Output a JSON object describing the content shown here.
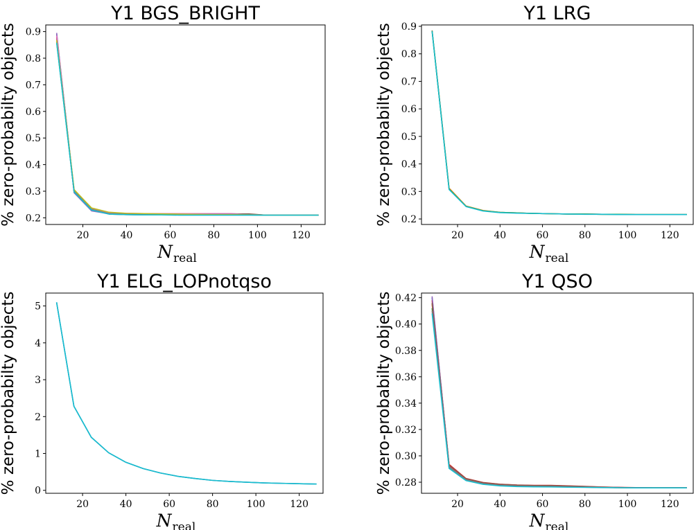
{
  "chart_data": [
    {
      "type": "line",
      "title": "Y1 BGS_BRIGHT",
      "xlabel": "N",
      "xlabel_sub": "real",
      "ylabel": "% zero-probabilty objects",
      "xlim": [
        3,
        131
      ],
      "ylim": [
        0.175,
        0.925
      ],
      "xticks": [
        20,
        40,
        60,
        80,
        100,
        120
      ],
      "yticks": [
        0.2,
        0.3,
        0.4,
        0.5,
        0.6,
        0.7,
        0.8,
        0.9
      ],
      "ytick_decimals": 1,
      "series": [
        {
          "color": "#1f77b4",
          "x": [
            8,
            16,
            24,
            32,
            40,
            48,
            56,
            64,
            72,
            80,
            88,
            96,
            104,
            112,
            120,
            128
          ],
          "values": [
            0.89,
            0.3,
            0.228,
            0.214,
            0.212,
            0.211,
            0.211,
            0.211,
            0.211,
            0.211,
            0.211,
            0.211,
            0.21,
            0.21,
            0.21,
            0.21
          ]
        },
        {
          "color": "#ff7f0e",
          "x": [
            8,
            16,
            24,
            32,
            40,
            48,
            56,
            64,
            72,
            80,
            88,
            96,
            104,
            112,
            120,
            128
          ],
          "values": [
            0.87,
            0.305,
            0.235,
            0.22,
            0.216,
            0.215,
            0.214,
            0.214,
            0.213,
            0.213,
            0.212,
            0.212,
            0.21,
            0.21,
            0.21,
            0.21
          ]
        },
        {
          "color": "#2ca02c",
          "x": [
            8,
            16,
            24,
            32,
            40,
            48,
            56,
            64,
            72,
            80,
            88,
            96,
            104,
            112,
            120,
            128
          ],
          "values": [
            0.86,
            0.298,
            0.23,
            0.216,
            0.214,
            0.213,
            0.212,
            0.212,
            0.212,
            0.211,
            0.211,
            0.211,
            0.21,
            0.21,
            0.21,
            0.21
          ]
        },
        {
          "color": "#d62728",
          "x": [
            8,
            16,
            24,
            32,
            40,
            48,
            56,
            64,
            72,
            80,
            88,
            96,
            104,
            112,
            120,
            128
          ],
          "values": [
            0.88,
            0.296,
            0.229,
            0.217,
            0.215,
            0.215,
            0.214,
            0.214,
            0.214,
            0.214,
            0.214,
            0.213,
            0.21,
            0.21,
            0.21,
            0.21
          ]
        },
        {
          "color": "#9467bd",
          "x": [
            8,
            16,
            24,
            32,
            40,
            48,
            56,
            64,
            72,
            80,
            88,
            96,
            104,
            112,
            120,
            128
          ],
          "values": [
            0.895,
            0.294,
            0.226,
            0.215,
            0.213,
            0.212,
            0.212,
            0.212,
            0.212,
            0.212,
            0.212,
            0.212,
            0.21,
            0.21,
            0.21,
            0.21
          ]
        },
        {
          "color": "#8c564b",
          "x": [
            8,
            16,
            24,
            32,
            40,
            48,
            56,
            64,
            72,
            80,
            88,
            96,
            104,
            112,
            120,
            128
          ],
          "values": [
            0.875,
            0.297,
            0.231,
            0.218,
            0.216,
            0.215,
            0.215,
            0.215,
            0.215,
            0.215,
            0.215,
            0.215,
            0.21,
            0.21,
            0.21,
            0.21
          ]
        },
        {
          "color": "#e377c2",
          "x": [
            8,
            16,
            24,
            32,
            40,
            48,
            56,
            64,
            72,
            80,
            88,
            96,
            104,
            112,
            120,
            128
          ],
          "values": [
            0.885,
            0.299,
            0.233,
            0.219,
            0.217,
            0.216,
            0.216,
            0.216,
            0.216,
            0.216,
            0.216,
            0.212,
            0.21,
            0.21,
            0.21,
            0.21
          ]
        },
        {
          "color": "#7f7f7f",
          "x": [
            8,
            16,
            24,
            32,
            40,
            48,
            56,
            64,
            72,
            80,
            88,
            96,
            104,
            112,
            120,
            128
          ],
          "values": [
            0.865,
            0.301,
            0.232,
            0.216,
            0.214,
            0.213,
            0.213,
            0.213,
            0.213,
            0.213,
            0.213,
            0.213,
            0.21,
            0.21,
            0.21,
            0.21
          ]
        },
        {
          "color": "#bcbd22",
          "x": [
            8,
            16,
            24,
            32,
            40,
            48,
            56,
            64,
            72,
            80,
            88,
            96,
            104,
            112,
            120,
            128
          ],
          "values": [
            0.868,
            0.306,
            0.237,
            0.221,
            0.217,
            0.216,
            0.215,
            0.214,
            0.213,
            0.212,
            0.212,
            0.211,
            0.21,
            0.21,
            0.21,
            0.21
          ]
        },
        {
          "color": "#17becf",
          "x": [
            8,
            16,
            24,
            32,
            40,
            48,
            56,
            64,
            72,
            80,
            88,
            96,
            104,
            112,
            120,
            128
          ],
          "values": [
            0.858,
            0.297,
            0.229,
            0.214,
            0.212,
            0.211,
            0.211,
            0.21,
            0.21,
            0.21,
            0.21,
            0.21,
            0.21,
            0.21,
            0.21,
            0.21
          ]
        }
      ]
    },
    {
      "type": "line",
      "title": "Y1 LRG",
      "xlabel": "N",
      "xlabel_sub": "real",
      "ylabel": "% zero-probabilty objects",
      "xlim": [
        3,
        131
      ],
      "ylim": [
        0.18,
        0.905
      ],
      "xticks": [
        20,
        40,
        60,
        80,
        100,
        120
      ],
      "yticks": [
        0.2,
        0.3,
        0.4,
        0.5,
        0.6,
        0.7,
        0.8,
        0.9
      ],
      "ytick_decimals": 1,
      "series": [
        {
          "color": "#1f77b4",
          "x": [
            8,
            16,
            24,
            32,
            40,
            48,
            56,
            64,
            72,
            80,
            88,
            96,
            104,
            112,
            120,
            128
          ],
          "values": [
            0.885,
            0.31,
            0.246,
            0.23,
            0.224,
            0.222,
            0.22,
            0.219,
            0.218,
            0.218,
            0.217,
            0.217,
            0.216,
            0.216,
            0.216,
            0.216
          ]
        },
        {
          "color": "#ff7f0e",
          "x": [
            8,
            16,
            24,
            32,
            40,
            48,
            56,
            64,
            72,
            80,
            88,
            96,
            104,
            112,
            120,
            128
          ],
          "values": [
            0.884,
            0.312,
            0.247,
            0.231,
            0.224,
            0.222,
            0.22,
            0.219,
            0.218,
            0.218,
            0.217,
            0.217,
            0.216,
            0.216,
            0.216,
            0.216
          ]
        },
        {
          "color": "#2ca02c",
          "x": [
            8,
            16,
            24,
            32,
            40,
            48,
            56,
            64,
            72,
            80,
            88,
            96,
            104,
            112,
            120,
            128
          ],
          "values": [
            0.883,
            0.309,
            0.246,
            0.23,
            0.224,
            0.222,
            0.22,
            0.219,
            0.218,
            0.218,
            0.217,
            0.217,
            0.216,
            0.216,
            0.216,
            0.216
          ]
        },
        {
          "color": "#17becf",
          "x": [
            8,
            16,
            24,
            32,
            40,
            48,
            56,
            64,
            72,
            80,
            88,
            96,
            104,
            112,
            120,
            128
          ],
          "values": [
            0.882,
            0.307,
            0.245,
            0.229,
            0.223,
            0.221,
            0.22,
            0.219,
            0.218,
            0.217,
            0.217,
            0.216,
            0.216,
            0.216,
            0.216,
            0.216
          ]
        }
      ]
    },
    {
      "type": "line",
      "title": "Y1 ELG_LOPnotqso",
      "xlabel": "N",
      "xlabel_sub": "real",
      "ylabel": "% zero-probabilty objects",
      "xlim": [
        3,
        131
      ],
      "ylim": [
        -0.08,
        5.35
      ],
      "xticks": [
        20,
        40,
        60,
        80,
        100,
        120
      ],
      "yticks": [
        0,
        1,
        2,
        3,
        4,
        5
      ],
      "ytick_decimals": 0,
      "series": [
        {
          "color": "#1f77b4",
          "x": [
            8,
            16,
            24,
            32,
            40,
            48,
            56,
            64,
            72,
            80,
            88,
            96,
            104,
            112,
            120,
            128
          ],
          "values": [
            5.1,
            2.28,
            1.44,
            1.02,
            0.76,
            0.59,
            0.47,
            0.38,
            0.32,
            0.27,
            0.24,
            0.22,
            0.2,
            0.19,
            0.18,
            0.17
          ]
        },
        {
          "color": "#17becf",
          "x": [
            8,
            16,
            24,
            32,
            40,
            48,
            56,
            64,
            72,
            80,
            88,
            96,
            104,
            112,
            120,
            128
          ],
          "values": [
            5.1,
            2.28,
            1.44,
            1.02,
            0.76,
            0.59,
            0.47,
            0.38,
            0.32,
            0.27,
            0.24,
            0.22,
            0.2,
            0.19,
            0.18,
            0.17
          ]
        }
      ]
    },
    {
      "type": "line",
      "title": "Y1 QSO",
      "xlabel": "N",
      "xlabel_sub": "real",
      "ylabel": "% zero-probabilty objects",
      "xlim": [
        3,
        131
      ],
      "ylim": [
        0.2716,
        0.4235
      ],
      "xticks": [
        20,
        40,
        60,
        80,
        100,
        120
      ],
      "yticks": [
        0.28,
        0.3,
        0.32,
        0.34,
        0.36,
        0.38,
        0.4,
        0.42
      ],
      "ytick_decimals": 2,
      "series": [
        {
          "color": "#1f77b4",
          "x": [
            8,
            16,
            24,
            32,
            40,
            48,
            56,
            64,
            72,
            80,
            88,
            96,
            104,
            112,
            120,
            128
          ],
          "values": [
            0.42,
            0.293,
            0.2825,
            0.2795,
            0.2782,
            0.2775,
            0.2773,
            0.2772,
            0.2768,
            0.2765,
            0.2762,
            0.276,
            0.2758,
            0.2757,
            0.2757,
            0.2757
          ]
        },
        {
          "color": "#ff7f0e",
          "x": [
            8,
            16,
            24,
            32,
            40,
            48,
            56,
            64,
            72,
            80,
            88,
            96,
            104,
            112,
            120,
            128
          ],
          "values": [
            0.415,
            0.292,
            0.2822,
            0.2792,
            0.278,
            0.2774,
            0.2771,
            0.277,
            0.2767,
            0.2764,
            0.2761,
            0.2759,
            0.2758,
            0.2757,
            0.2757,
            0.2757
          ]
        },
        {
          "color": "#2ca02c",
          "x": [
            8,
            16,
            24,
            32,
            40,
            48,
            56,
            64,
            72,
            80,
            88,
            96,
            104,
            112,
            120,
            128
          ],
          "values": [
            0.412,
            0.291,
            0.282,
            0.279,
            0.2779,
            0.2773,
            0.277,
            0.2769,
            0.2766,
            0.2763,
            0.2761,
            0.2759,
            0.2758,
            0.2757,
            0.2757,
            0.2757
          ]
        },
        {
          "color": "#d62728",
          "x": [
            8,
            16,
            24,
            32,
            40,
            48,
            56,
            64,
            72,
            80,
            88,
            96,
            104,
            112,
            120,
            128
          ],
          "values": [
            0.418,
            0.2935,
            0.2828,
            0.2798,
            0.2785,
            0.2779,
            0.2776,
            0.2776,
            0.2772,
            0.2768,
            0.2764,
            0.2761,
            0.2759,
            0.2757,
            0.2757,
            0.2757
          ]
        },
        {
          "color": "#9467bd",
          "x": [
            8,
            16,
            24,
            32,
            40,
            48,
            56,
            64,
            72,
            80,
            88,
            96,
            104,
            112,
            120,
            128
          ],
          "values": [
            0.421,
            0.2925,
            0.2823,
            0.2793,
            0.2781,
            0.2776,
            0.2772,
            0.2771,
            0.2768,
            0.2765,
            0.2762,
            0.276,
            0.2758,
            0.2757,
            0.2757,
            0.2757
          ]
        },
        {
          "color": "#8c564b",
          "x": [
            8,
            16,
            24,
            32,
            40,
            48,
            56,
            64,
            72,
            80,
            88,
            96,
            104,
            112,
            120,
            128
          ],
          "values": [
            0.416,
            0.2928,
            0.2826,
            0.2796,
            0.2784,
            0.2778,
            0.2775,
            0.2775,
            0.2771,
            0.2767,
            0.2763,
            0.276,
            0.2758,
            0.2757,
            0.2757,
            0.2757
          ]
        },
        {
          "color": "#7f7f7f",
          "x": [
            8,
            16,
            24,
            32,
            40,
            48,
            56,
            64,
            72,
            80,
            88,
            96,
            104,
            112,
            120,
            128
          ],
          "values": [
            0.41,
            0.2915,
            0.2818,
            0.2788,
            0.2776,
            0.277,
            0.2768,
            0.2767,
            0.2764,
            0.2762,
            0.276,
            0.2758,
            0.2757,
            0.2757,
            0.2757,
            0.2757
          ]
        },
        {
          "color": "#17becf",
          "x": [
            8,
            16,
            24,
            32,
            40,
            48,
            56,
            64,
            72,
            80,
            88,
            96,
            104,
            112,
            120,
            128
          ],
          "values": [
            0.408,
            0.2905,
            0.2812,
            0.2784,
            0.2772,
            0.2767,
            0.2765,
            0.2764,
            0.2762,
            0.2761,
            0.2759,
            0.2758,
            0.2757,
            0.2757,
            0.2757,
            0.2757
          ]
        }
      ]
    }
  ]
}
